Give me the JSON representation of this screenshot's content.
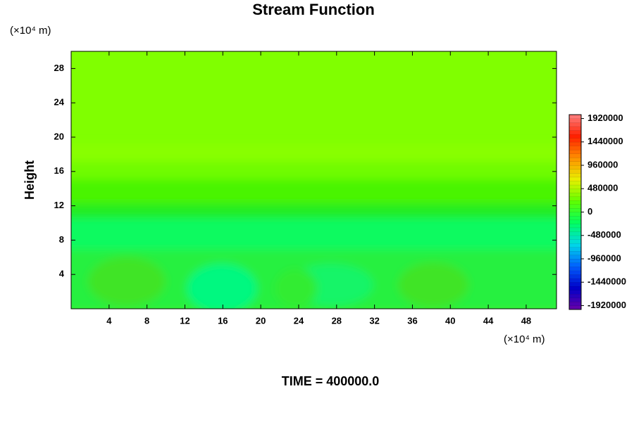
{
  "chart_data": {
    "type": "contour",
    "title": "Stream Function",
    "y_label": "Height",
    "x_unit": "(×10⁴ m)",
    "y_unit": "(×10⁴ m)",
    "annotation": "TIME = 400000.0",
    "xlim": [
      0,
      51.2
    ],
    "ylim": [
      0,
      30
    ],
    "xticks": [
      4,
      8,
      12,
      16,
      20,
      24,
      28,
      32,
      36,
      40,
      44,
      48
    ],
    "yticks": [
      4,
      8,
      12,
      16,
      20,
      24,
      28
    ],
    "colorbar": {
      "lim": [
        -2000000,
        2000000
      ],
      "ticks": [
        -1920000,
        -1440000,
        -960000,
        -480000,
        0,
        480000,
        960000,
        1440000,
        1920000
      ],
      "colormap": [
        "#6a00a8",
        "#0000c8",
        "#0060ff",
        "#00d8e8",
        "#00ff60",
        "#60ff00",
        "#e8f000",
        "#ff9000",
        "#ff2000",
        "#ff8080"
      ]
    }
  }
}
